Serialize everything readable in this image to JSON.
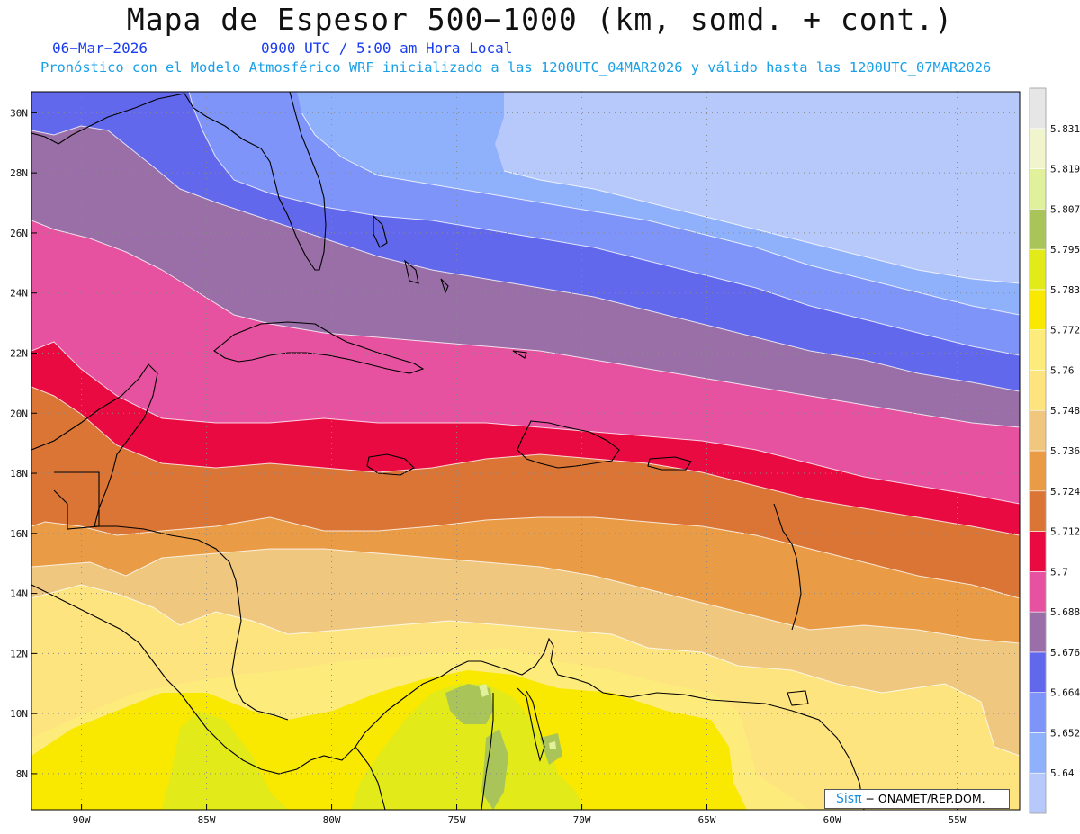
{
  "header": {
    "title": "Mapa de Espesor 500−1000 (km, somd. + cont.)",
    "date": "06−Mar−2026",
    "time": "0900 UTC / 5:00 am Hora Local",
    "description": "Pronóstico con el Modelo Atmosférico WRF inicializado a las 1200UTC_04MAR2026 y válido hasta las  1200UTC_07MAR2026"
  },
  "colors": {
    "date": "#1a3cf0",
    "time": "#1a3cf0",
    "description": "#1aa0e8",
    "credit_brand": "#1a90e0"
  },
  "map": {
    "lon_range": [
      -92,
      -52.5
    ],
    "lat_range": [
      6.8,
      30.7
    ],
    "lat_ticks": [
      "30N",
      "28N",
      "26N",
      "24N",
      "22N",
      "20N",
      "18N",
      "16N",
      "14N",
      "12N",
      "10N",
      "8N"
    ],
    "lon_ticks": [
      "90W",
      "85W",
      "80W",
      "75W",
      "70W",
      "65W",
      "60W",
      "55W"
    ],
    "gridlines": "dotted"
  },
  "legend": {
    "levels": [
      "5.64",
      "5.652",
      "5.664",
      "5.676",
      "5.688",
      "5.7",
      "5.712",
      "5.724",
      "5.736",
      "5.748",
      "5.76",
      "5.772",
      "5.783",
      "5.795",
      "5.807",
      "5.819",
      "5.831"
    ],
    "colors": [
      "#b7c8fb",
      "#8fb0fb",
      "#7f94f8",
      "#6268ec",
      "#9a6ea6",
      "#e6529f",
      "#ea0a42",
      "#db7535",
      "#e99b45",
      "#f0c77e",
      "#fde47f",
      "#fdeb7c",
      "#f9e800",
      "#e2ea1a",
      "#a9c55a",
      "#e1f09a",
      "#f0f5cd",
      "#e6e6e6"
    ]
  },
  "credit": {
    "brand": "Sisπ",
    "text": "− ONAMET/REP.DOM."
  }
}
